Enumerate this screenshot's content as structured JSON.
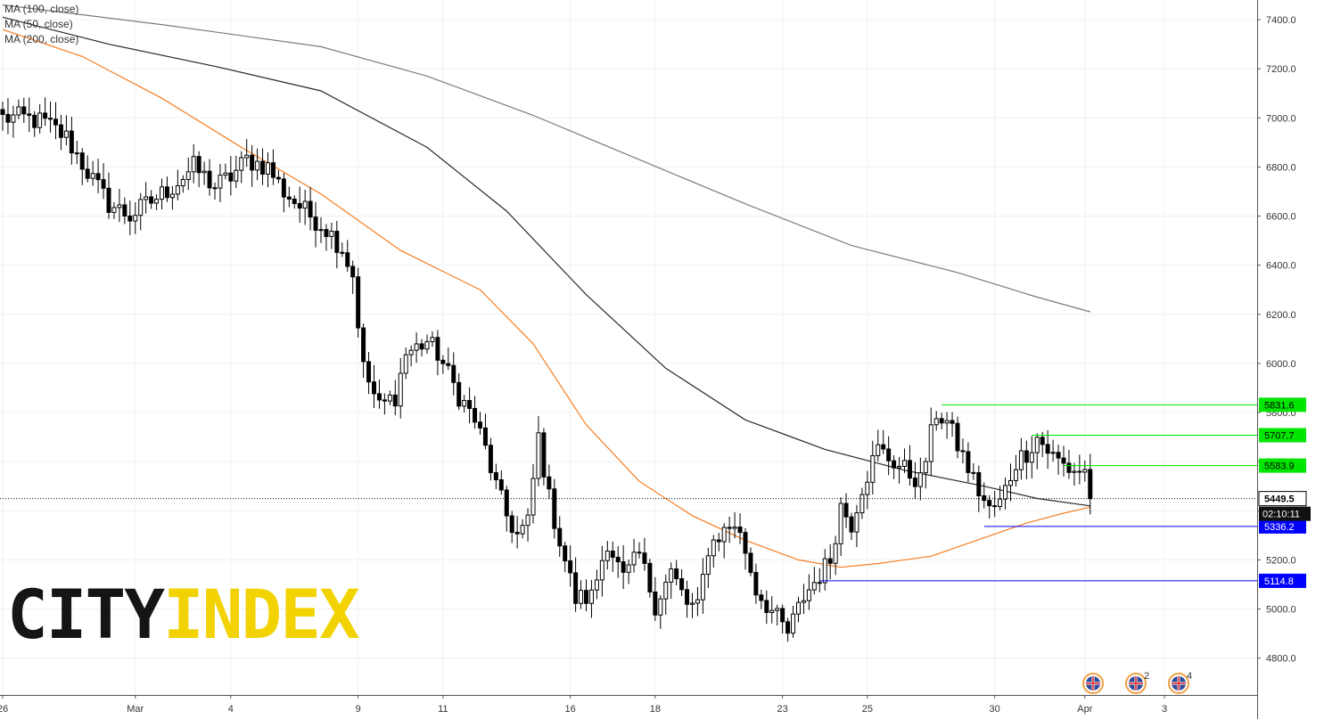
{
  "legend": {
    "ma100": "MA (100, close)",
    "ma50": "MA (50, close)",
    "ma200": "MA (200, close)"
  },
  "logo": {
    "part1": "CITY",
    "part2": "INDEX"
  },
  "countdown": "02:10:11",
  "event_badges": [
    {
      "icon": "uk-flag-icon",
      "count": ""
    },
    {
      "icon": "uk-flag-icon",
      "count": "2"
    },
    {
      "icon": "uk-flag-icon",
      "count": "4"
    }
  ],
  "chart_data": {
    "type": "candlestick",
    "ylim": [
      4650,
      7480
    ],
    "y_ticks": [
      4800,
      5000,
      5200,
      5400,
      5600,
      5800,
      6000,
      6200,
      6400,
      6600,
      6800,
      7000,
      7200,
      7400
    ],
    "y_tick_labels": [
      "4800.0",
      "5000.0",
      "5200.0",
      "5400.0",
      "5600.0",
      "5800.0",
      "6000.0",
      "6200.0",
      "6400.0",
      "6600.0",
      "6800.0",
      "7000.0",
      "7200.0",
      "7400.0"
    ],
    "x_tick_labels": [
      "26",
      "Mar",
      "4",
      "9",
      "11",
      "16",
      "18",
      "23",
      "25",
      "30",
      "Apr",
      "3"
    ],
    "x_tick_bar_index": [
      0,
      25,
      43,
      67,
      83,
      107,
      123,
      147,
      163,
      187,
      204,
      219
    ],
    "grid": true,
    "last_price": 5449.5,
    "price_lines": [
      {
        "value": 5831.6,
        "label": "5831.6",
        "color": "#00e600",
        "from_bar": 177
      },
      {
        "value": 5707.7,
        "label": "5707.7",
        "color": "#00e600",
        "from_bar": 194
      },
      {
        "value": 5583.9,
        "label": "5583.9",
        "color": "#00e600",
        "from_bar": 200
      },
      {
        "value": 5336.2,
        "label": "5336.2",
        "color": "#0000ff",
        "from_bar": 185
      },
      {
        "value": 5114.8,
        "label": "5114.8",
        "color": "#0000ff",
        "from_bar": 154
      }
    ],
    "moving_averages": [
      {
        "name": "MA (50, close)",
        "color": "#f57c20",
        "points": [
          [
            0,
            7360
          ],
          [
            15,
            7250
          ],
          [
            30,
            7080
          ],
          [
            45,
            6880
          ],
          [
            60,
            6690
          ],
          [
            75,
            6460
          ],
          [
            90,
            6300
          ],
          [
            100,
            6080
          ],
          [
            110,
            5750
          ],
          [
            120,
            5520
          ],
          [
            130,
            5380
          ],
          [
            140,
            5280
          ],
          [
            150,
            5200
          ],
          [
            158,
            5170
          ],
          [
            165,
            5185
          ],
          [
            175,
            5215
          ],
          [
            185,
            5290
          ],
          [
            193,
            5350
          ],
          [
            200,
            5390
          ],
          [
            205,
            5415
          ]
        ]
      },
      {
        "name": "MA (100, close)",
        "color": "#2a2a2a",
        "points": [
          [
            0,
            7410
          ],
          [
            20,
            7300
          ],
          [
            40,
            7210
          ],
          [
            60,
            7110
          ],
          [
            80,
            6880
          ],
          [
            95,
            6620
          ],
          [
            110,
            6280
          ],
          [
            125,
            5980
          ],
          [
            140,
            5770
          ],
          [
            155,
            5650
          ],
          [
            170,
            5565
          ],
          [
            185,
            5500
          ],
          [
            195,
            5450
          ],
          [
            205,
            5420
          ]
        ]
      },
      {
        "name": "MA (200, close)",
        "color": "#7b7b7b",
        "points": [
          [
            0,
            7460
          ],
          [
            30,
            7380
          ],
          [
            60,
            7290
          ],
          [
            80,
            7170
          ],
          [
            100,
            7010
          ],
          [
            120,
            6830
          ],
          [
            140,
            6650
          ],
          [
            160,
            6480
          ],
          [
            180,
            6370
          ],
          [
            195,
            6270
          ],
          [
            205,
            6210
          ]
        ]
      }
    ],
    "anchors": [
      [
        0,
        7000
      ],
      [
        4,
        7000
      ],
      [
        8,
        6980
      ],
      [
        12,
        6920
      ],
      [
        16,
        6780
      ],
      [
        20,
        6650
      ],
      [
        24,
        6600
      ],
      [
        28,
        6660
      ],
      [
        32,
        6720
      ],
      [
        36,
        6800
      ],
      [
        40,
        6720
      ],
      [
        43,
        6760
      ],
      [
        46,
        6830
      ],
      [
        50,
        6800
      ],
      [
        53,
        6700
      ],
      [
        57,
        6620
      ],
      [
        61,
        6550
      ],
      [
        64,
        6470
      ],
      [
        66,
        6360
      ],
      [
        68,
        5980
      ],
      [
        71,
        5820
      ],
      [
        74,
        5870
      ],
      [
        76,
        6040
      ],
      [
        80,
        6090
      ],
      [
        82,
        6040
      ],
      [
        86,
        5870
      ],
      [
        89,
        5770
      ],
      [
        91,
        5650
      ],
      [
        93,
        5500
      ],
      [
        95,
        5380
      ],
      [
        97,
        5300
      ],
      [
        99,
        5350
      ],
      [
        101,
        5700
      ],
      [
        103,
        5450
      ],
      [
        105,
        5280
      ],
      [
        108,
        5040
      ],
      [
        111,
        5050
      ],
      [
        114,
        5280
      ],
      [
        117,
        5120
      ],
      [
        120,
        5220
      ],
      [
        123,
        5020
      ],
      [
        126,
        5150
      ],
      [
        129,
        5020
      ],
      [
        131,
        5000
      ],
      [
        133,
        5250
      ],
      [
        135,
        5300
      ],
      [
        138,
        5350
      ],
      [
        140,
        5240
      ],
      [
        142,
        5080
      ],
      [
        145,
        4990
      ],
      [
        148,
        4900
      ],
      [
        151,
        5050
      ],
      [
        154,
        5140
      ],
      [
        156,
        5200
      ],
      [
        158,
        5420
      ],
      [
        160,
        5350
      ],
      [
        162,
        5500
      ],
      [
        165,
        5650
      ],
      [
        168,
        5600
      ],
      [
        171,
        5550
      ],
      [
        173,
        5520
      ],
      [
        176,
        5800
      ],
      [
        178,
        5760
      ],
      [
        181,
        5620
      ],
      [
        184,
        5480
      ],
      [
        186,
        5400
      ],
      [
        188,
        5430
      ],
      [
        191,
        5600
      ],
      [
        193,
        5640
      ],
      [
        195,
        5700
      ],
      [
        198,
        5620
      ],
      [
        201,
        5570
      ],
      [
        204,
        5560
      ],
      [
        205,
        5449.5
      ]
    ]
  }
}
